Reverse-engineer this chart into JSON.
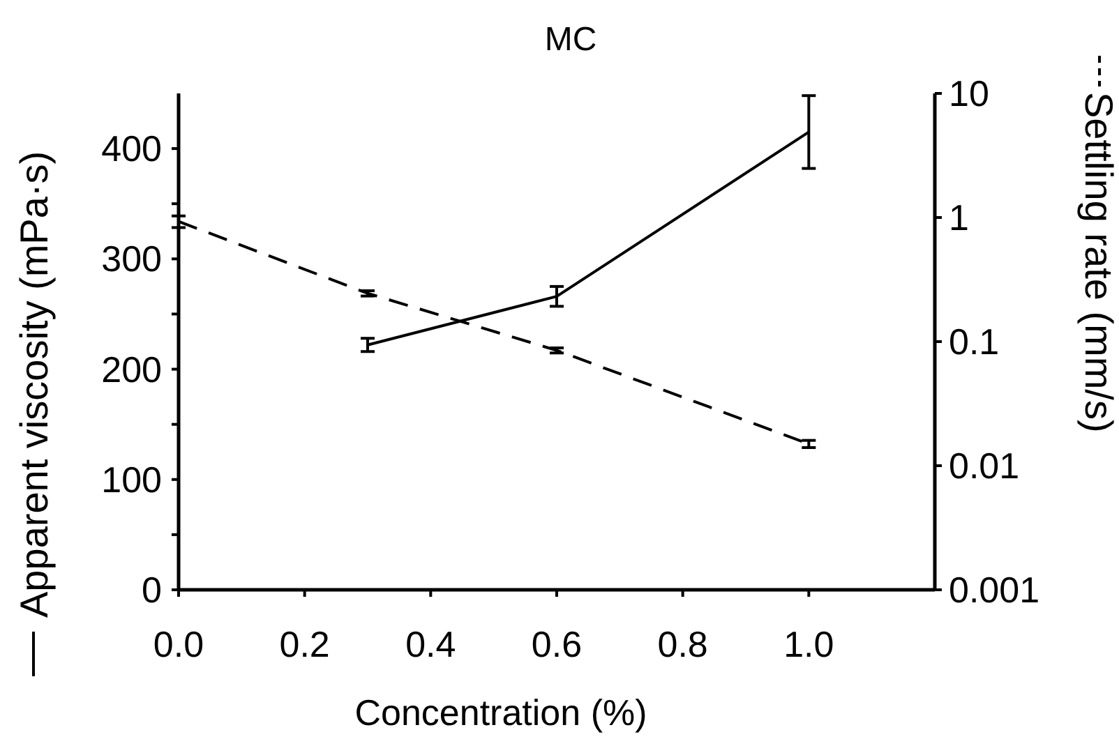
{
  "chart_data": {
    "type": "line",
    "title": "MC",
    "xlabel": "Concentration (%)",
    "ylabel": "Apparent viscosity (mPa·s)",
    "y2label": "Settling rate (mm/s)",
    "xlim": [
      0,
      1.2
    ],
    "xticks": [
      {
        "value": 0,
        "label": "0.0"
      },
      {
        "value": 0.2,
        "label": "0.2"
      },
      {
        "value": 0.4,
        "label": "0.4"
      },
      {
        "value": 0.6,
        "label": "0.6"
      },
      {
        "value": 0.8,
        "label": "0.8"
      },
      {
        "value": 1,
        "label": "1.0"
      }
    ],
    "ylim": [
      0,
      450
    ],
    "yticks": [
      0,
      {
        "value": 50,
        "label": null
      },
      100,
      {
        "value": 150,
        "label": null
      },
      200,
      {
        "value": 250,
        "label": null
      },
      300,
      {
        "value": 350,
        "label": null
      },
      400
    ],
    "y2lim": [
      0.001,
      10
    ],
    "y2ticks": [
      0.001,
      0.01,
      0.1,
      1,
      10
    ],
    "log": "y2",
    "grid": false,
    "marker": "none",
    "series": [
      {
        "color": "#000000",
        "line_style": "solid",
        "x": [
          0.3,
          0.6,
          1.0
        ],
        "values": [
          222,
          266,
          415
        ],
        "errors": [
          6,
          9,
          33
        ]
      },
      {
        "color": "#000000",
        "line_style": "dashed",
        "axis": "y2",
        "x": [
          0,
          0.3,
          0.6,
          1.0
        ],
        "values": [
          0.93,
          0.245,
          0.085,
          0.015
        ],
        "errors": [
          0.1,
          0.012,
          0.004,
          0.001
        ]
      }
    ]
  }
}
